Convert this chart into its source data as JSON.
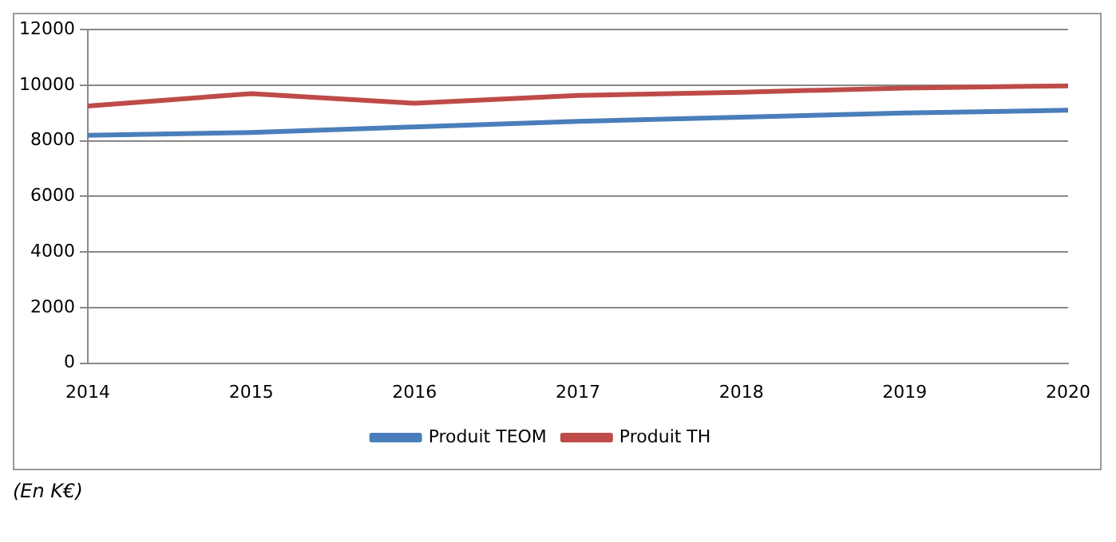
{
  "chart_data": {
    "type": "line",
    "categories": [
      "2014",
      "2015",
      "2016",
      "2017",
      "2018",
      "2019",
      "2020"
    ],
    "series": [
      {
        "name": "Produit TEOM",
        "color": "#4a7ebb",
        "values": [
          8200,
          8300,
          8500,
          8700,
          8850,
          9000,
          9100
        ]
      },
      {
        "name": "Produit TH",
        "color": "#be4b48",
        "values": [
          9250,
          9700,
          9350,
          9630,
          9750,
          9900,
          9980
        ]
      }
    ],
    "ylim": [
      0,
      12000
    ],
    "yticks": [
      0,
      2000,
      4000,
      6000,
      8000,
      10000,
      12000
    ],
    "grid": "y",
    "legend": "bottom",
    "marker": "none",
    "line_style": "solid",
    "annotations": [
      "(En K€)"
    ]
  }
}
